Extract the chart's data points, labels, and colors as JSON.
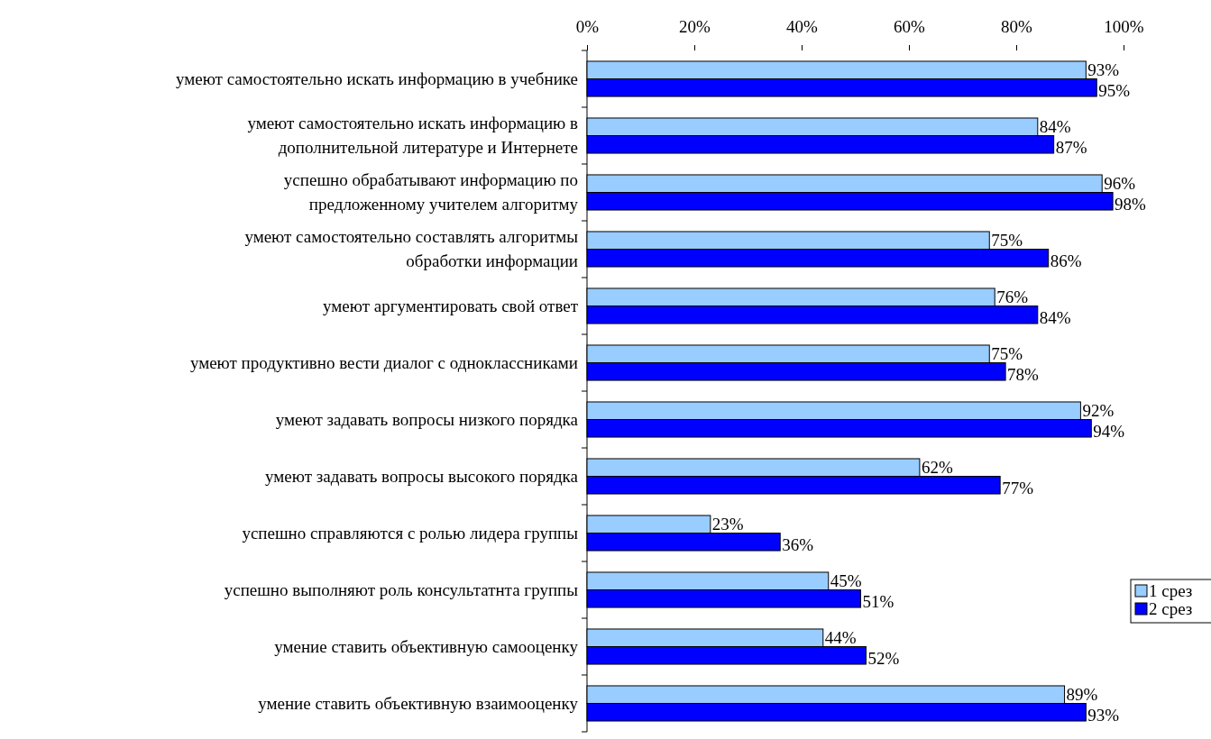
{
  "chart_data": {
    "type": "bar",
    "orientation": "horizontal",
    "categories": [
      "умеют самостоятельно искать информацию в учебнике",
      "умеют самостоятельно искать информацию в\nдополнительной литературе и Интернете",
      "успешно обрабатывают информацию по\nпредложенному учителем алгоритму",
      "умеют самостоятельно составлять алгоритмы\nобработки информации",
      "умеют аргументировать свой ответ",
      "умеют продуктивно вести диалог с одноклассниками",
      "умеют задавать вопросы низкого порядка",
      "умеют задавать вопросы высокого порядка",
      "успешно справляются с ролью лидера группы",
      "успешно выполняют роль консультатнта группы",
      "умение ставить объективную самооценку",
      "умение ставить объективную взаимооценку"
    ],
    "series": [
      {
        "name": "1 срез",
        "color": "#99ccff",
        "values": [
          93,
          84,
          96,
          75,
          76,
          75,
          92,
          62,
          23,
          45,
          44,
          89
        ],
        "value_labels": [
          "93%",
          "84%",
          "96%",
          "75%",
          "76%",
          "75%",
          "92%",
          "62%",
          "23%",
          "45%",
          "44%",
          "89%"
        ]
      },
      {
        "name": "2 срез",
        "color": "#0000ff",
        "values": [
          95,
          87,
          98,
          86,
          84,
          78,
          94,
          77,
          36,
          51,
          52,
          93
        ],
        "value_labels": [
          "95%",
          "87%",
          "98%",
          "86%",
          "84%",
          "78%",
          "94%",
          "77%",
          "36%",
          "51%",
          "52%",
          "93%"
        ]
      }
    ],
    "xlim": [
      0,
      100
    ],
    "xticks": [
      {
        "value": 0,
        "label": "0%"
      },
      {
        "value": 20,
        "label": "20%"
      },
      {
        "value": 40,
        "label": "40%"
      },
      {
        "value": 60,
        "label": "60%"
      },
      {
        "value": 80,
        "label": "80%"
      },
      {
        "value": 100,
        "label": "100%"
      }
    ],
    "grid": false,
    "legend": "right"
  }
}
